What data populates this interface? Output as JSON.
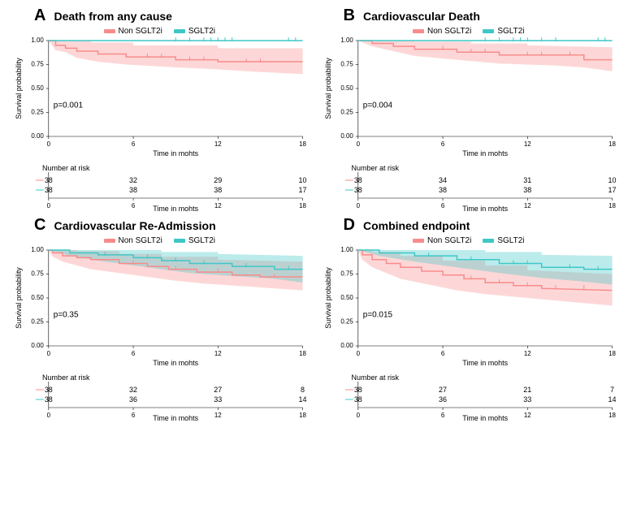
{
  "colors": {
    "non": "#f98b8b",
    "non_fill": "rgba(249,139,139,0.35)",
    "sgl": "#3fc7c7",
    "sgl_fill": "rgba(63,199,199,0.35)",
    "bg": "#ffffff"
  },
  "legend": {
    "non": "Non SGLT2i",
    "sgl": "SGLT2i"
  },
  "axes": {
    "xmin": 0,
    "xmax": 18,
    "xticks": [
      0,
      6,
      12,
      18
    ],
    "ymin": 0,
    "ymax": 1,
    "yticks": [
      0.0,
      0.25,
      0.5,
      0.75,
      1.0
    ],
    "xlabel": "Time in mohts",
    "ylabel": "Survival probability"
  },
  "risk_label": "Number at risk",
  "panels": [
    {
      "letter": "A",
      "title": "Death from any cause",
      "p": "p=0.001",
      "non_curve": [
        [
          0,
          1.0
        ],
        [
          0.5,
          1.0
        ],
        [
          0.5,
          0.95
        ],
        [
          1.2,
          0.95
        ],
        [
          1.2,
          0.92
        ],
        [
          2.0,
          0.92
        ],
        [
          2.0,
          0.89
        ],
        [
          3.5,
          0.89
        ],
        [
          3.5,
          0.86
        ],
        [
          5.5,
          0.86
        ],
        [
          5.5,
          0.83
        ],
        [
          9.0,
          0.83
        ],
        [
          9.0,
          0.8
        ],
        [
          12.0,
          0.8
        ],
        [
          12.0,
          0.78
        ],
        [
          18,
          0.78
        ]
      ],
      "non_ci_upper": [
        [
          0,
          1.0
        ],
        [
          0.5,
          1.0
        ],
        [
          0.5,
          1.0
        ],
        [
          3,
          1.0
        ],
        [
          3,
          0.98
        ],
        [
          6,
          0.98
        ],
        [
          6,
          0.95
        ],
        [
          12,
          0.95
        ],
        [
          12,
          0.92
        ],
        [
          18,
          0.92
        ]
      ],
      "non_ci_lower": [
        [
          0,
          1.0
        ],
        [
          0.5,
          0.9
        ],
        [
          1.2,
          0.88
        ],
        [
          2.0,
          0.82
        ],
        [
          3.5,
          0.78
        ],
        [
          5.5,
          0.75
        ],
        [
          9.0,
          0.72
        ],
        [
          12,
          0.7
        ],
        [
          14,
          0.68
        ],
        [
          18,
          0.65
        ]
      ],
      "sgl_curve": [
        [
          0,
          1.0
        ],
        [
          18,
          1.0
        ]
      ],
      "sgl_ci_upper": [
        [
          0,
          1.0
        ],
        [
          18,
          1.0
        ]
      ],
      "sgl_ci_lower": [
        [
          0,
          1.0
        ],
        [
          18,
          1.0
        ]
      ],
      "sgl_cens": [
        9,
        10,
        11,
        11.5,
        12,
        12.5,
        13,
        17,
        17.5
      ],
      "non_cens": [
        7,
        8,
        10,
        11,
        14,
        15
      ],
      "risk": {
        "non": [
          38,
          32,
          29,
          10
        ],
        "sgl": [
          38,
          38,
          38,
          17
        ]
      }
    },
    {
      "letter": "B",
      "title": "Cardiovascular Death",
      "p": "p=0.004",
      "non_curve": [
        [
          0,
          1.0
        ],
        [
          1.0,
          1.0
        ],
        [
          1.0,
          0.97
        ],
        [
          2.5,
          0.97
        ],
        [
          2.5,
          0.94
        ],
        [
          4.0,
          0.94
        ],
        [
          4.0,
          0.91
        ],
        [
          7.0,
          0.91
        ],
        [
          7.0,
          0.88
        ],
        [
          10.0,
          0.88
        ],
        [
          10.0,
          0.85
        ],
        [
          16.0,
          0.85
        ],
        [
          16.0,
          0.8
        ],
        [
          18,
          0.8
        ]
      ],
      "non_ci_upper": [
        [
          0,
          1.0
        ],
        [
          4,
          1.0
        ],
        [
          4,
          0.99
        ],
        [
          8,
          0.99
        ],
        [
          8,
          0.97
        ],
        [
          12,
          0.97
        ],
        [
          12,
          0.95
        ],
        [
          18,
          0.93
        ]
      ],
      "non_ci_lower": [
        [
          0,
          1.0
        ],
        [
          1,
          0.94
        ],
        [
          2.5,
          0.89
        ],
        [
          4,
          0.84
        ],
        [
          7,
          0.8
        ],
        [
          10,
          0.76
        ],
        [
          14,
          0.74
        ],
        [
          16,
          0.72
        ],
        [
          18,
          0.68
        ]
      ],
      "sgl_curve": [
        [
          0,
          1.0
        ],
        [
          18,
          1.0
        ]
      ],
      "sgl_ci_upper": [
        [
          0,
          1.0
        ],
        [
          18,
          1.0
        ]
      ],
      "sgl_ci_lower": [
        [
          0,
          1.0
        ],
        [
          18,
          1.0
        ]
      ],
      "sgl_cens": [
        9,
        10,
        11,
        11.5,
        12,
        13,
        14,
        17,
        17.5
      ],
      "non_cens": [
        6,
        8,
        9,
        12,
        13,
        15
      ],
      "risk": {
        "non": [
          38,
          34,
          31,
          10
        ],
        "sgl": [
          38,
          38,
          38,
          17
        ]
      }
    },
    {
      "letter": "C",
      "title": "Cardiovascular Re-Admission",
      "p": "p=0.35",
      "non_curve": [
        [
          0,
          1.0
        ],
        [
          0.3,
          1.0
        ],
        [
          0.3,
          0.97
        ],
        [
          1.0,
          0.97
        ],
        [
          1.0,
          0.94
        ],
        [
          2.0,
          0.94
        ],
        [
          2.0,
          0.92
        ],
        [
          3.0,
          0.92
        ],
        [
          3.0,
          0.9
        ],
        [
          5.0,
          0.9
        ],
        [
          5.0,
          0.86
        ],
        [
          7.0,
          0.86
        ],
        [
          7.0,
          0.83
        ],
        [
          8.5,
          0.83
        ],
        [
          8.5,
          0.8
        ],
        [
          10.5,
          0.8
        ],
        [
          10.5,
          0.77
        ],
        [
          13,
          0.77
        ],
        [
          13,
          0.74
        ],
        [
          15,
          0.74
        ],
        [
          15,
          0.72
        ],
        [
          18,
          0.72
        ]
      ],
      "non_ci_upper": [
        [
          0,
          1.0
        ],
        [
          2,
          1.0
        ],
        [
          2,
          0.99
        ],
        [
          5,
          0.99
        ],
        [
          5,
          0.96
        ],
        [
          8,
          0.96
        ],
        [
          8,
          0.93
        ],
        [
          12,
          0.93
        ],
        [
          12,
          0.9
        ],
        [
          18,
          0.88
        ]
      ],
      "non_ci_lower": [
        [
          0,
          1.0
        ],
        [
          0.3,
          0.93
        ],
        [
          1,
          0.88
        ],
        [
          2,
          0.84
        ],
        [
          3,
          0.8
        ],
        [
          5,
          0.76
        ],
        [
          7,
          0.72
        ],
        [
          9,
          0.68
        ],
        [
          11,
          0.65
        ],
        [
          14,
          0.62
        ],
        [
          18,
          0.58
        ]
      ],
      "sgl_curve": [
        [
          0,
          1.0
        ],
        [
          1.5,
          1.0
        ],
        [
          1.5,
          0.97
        ],
        [
          3.5,
          0.97
        ],
        [
          3.5,
          0.95
        ],
        [
          6.0,
          0.95
        ],
        [
          6.0,
          0.92
        ],
        [
          8.0,
          0.92
        ],
        [
          8.0,
          0.89
        ],
        [
          10.0,
          0.89
        ],
        [
          10.0,
          0.86
        ],
        [
          13.0,
          0.86
        ],
        [
          13.0,
          0.83
        ],
        [
          16.0,
          0.83
        ],
        [
          16.0,
          0.8
        ],
        [
          18,
          0.8
        ]
      ],
      "sgl_ci_upper": [
        [
          0,
          1.0
        ],
        [
          4,
          1.0
        ],
        [
          4,
          1.0
        ],
        [
          8,
          1.0
        ],
        [
          8,
          0.98
        ],
        [
          12,
          0.98
        ],
        [
          12,
          0.96
        ],
        [
          18,
          0.94
        ]
      ],
      "sgl_ci_lower": [
        [
          0,
          1.0
        ],
        [
          1.5,
          0.94
        ],
        [
          3.5,
          0.89
        ],
        [
          6,
          0.84
        ],
        [
          8,
          0.8
        ],
        [
          10,
          0.76
        ],
        [
          13,
          0.73
        ],
        [
          16,
          0.7
        ],
        [
          18,
          0.66
        ]
      ],
      "sgl_cens": [
        4,
        7,
        9,
        11,
        14,
        17
      ],
      "non_cens": [
        6,
        9,
        12,
        16
      ],
      "risk": {
        "non": [
          38,
          32,
          27,
          8
        ],
        "sgl": [
          38,
          36,
          33,
          14
        ]
      }
    },
    {
      "letter": "D",
      "title": "Combined endpoint",
      "p": "p=0.015",
      "non_curve": [
        [
          0,
          1.0
        ],
        [
          0.3,
          1.0
        ],
        [
          0.3,
          0.95
        ],
        [
          1.0,
          0.95
        ],
        [
          1.0,
          0.9
        ],
        [
          2.0,
          0.9
        ],
        [
          2.0,
          0.86
        ],
        [
          3.0,
          0.86
        ],
        [
          3.0,
          0.82
        ],
        [
          4.5,
          0.82
        ],
        [
          4.5,
          0.78
        ],
        [
          6.0,
          0.78
        ],
        [
          6.0,
          0.74
        ],
        [
          7.5,
          0.74
        ],
        [
          7.5,
          0.7
        ],
        [
          9.0,
          0.7
        ],
        [
          9.0,
          0.66
        ],
        [
          11.0,
          0.66
        ],
        [
          11.0,
          0.63
        ],
        [
          13,
          0.63
        ],
        [
          13,
          0.6
        ],
        [
          18,
          0.58
        ]
      ],
      "non_ci_upper": [
        [
          0,
          1.0
        ],
        [
          1,
          1.0
        ],
        [
          1,
          0.98
        ],
        [
          3,
          0.98
        ],
        [
          3,
          0.94
        ],
        [
          6,
          0.94
        ],
        [
          6,
          0.89
        ],
        [
          9,
          0.89
        ],
        [
          9,
          0.84
        ],
        [
          12,
          0.84
        ],
        [
          12,
          0.79
        ],
        [
          18,
          0.75
        ]
      ],
      "non_ci_lower": [
        [
          0,
          1.0
        ],
        [
          0.3,
          0.9
        ],
        [
          1,
          0.82
        ],
        [
          2,
          0.76
        ],
        [
          3,
          0.7
        ],
        [
          5,
          0.64
        ],
        [
          7,
          0.58
        ],
        [
          9,
          0.54
        ],
        [
          12,
          0.5
        ],
        [
          15,
          0.46
        ],
        [
          18,
          0.42
        ]
      ],
      "sgl_curve": [
        [
          0,
          1.0
        ],
        [
          1.5,
          1.0
        ],
        [
          1.5,
          0.97
        ],
        [
          4.0,
          0.97
        ],
        [
          4.0,
          0.94
        ],
        [
          7.0,
          0.94
        ],
        [
          7.0,
          0.9
        ],
        [
          10.0,
          0.9
        ],
        [
          10.0,
          0.86
        ],
        [
          13.0,
          0.86
        ],
        [
          13.0,
          0.82
        ],
        [
          16.0,
          0.82
        ],
        [
          16.0,
          0.8
        ],
        [
          18,
          0.8
        ]
      ],
      "sgl_ci_upper": [
        [
          0,
          1.0
        ],
        [
          5,
          1.0
        ],
        [
          5,
          1.0
        ],
        [
          9,
          1.0
        ],
        [
          9,
          0.98
        ],
        [
          13,
          0.98
        ],
        [
          13,
          0.95
        ],
        [
          18,
          0.94
        ]
      ],
      "sgl_ci_lower": [
        [
          0,
          1.0
        ],
        [
          1.5,
          0.94
        ],
        [
          4,
          0.88
        ],
        [
          7,
          0.82
        ],
        [
          10,
          0.76
        ],
        [
          13,
          0.71
        ],
        [
          16,
          0.67
        ],
        [
          18,
          0.64
        ]
      ],
      "sgl_cens": [
        5,
        8,
        11,
        12,
        15,
        17
      ],
      "non_cens": [
        8,
        10,
        12,
        14,
        16
      ],
      "risk": {
        "non": [
          38,
          27,
          21,
          7
        ],
        "sgl": [
          38,
          36,
          33,
          14
        ]
      }
    }
  ]
}
